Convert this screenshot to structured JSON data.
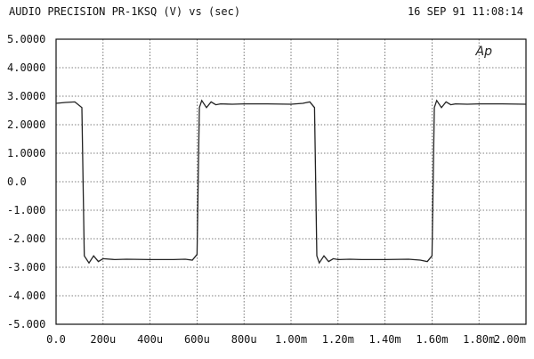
{
  "header": {
    "title": "AUDIO PRECISION PR-1KSQ  (V) vs  (sec)",
    "timestamp": "16 SEP 91 11:08:14"
  },
  "logo_text": "Ap",
  "chart_data": {
    "type": "line",
    "title": "AUDIO PRECISION PR-1KSQ  (V) vs  (sec)",
    "xlabel": "",
    "ylabel": "",
    "xlim": [
      0,
      0.002
    ],
    "ylim": [
      -5,
      5
    ],
    "grid": true,
    "x_tick_labels": [
      "0.0",
      "200u",
      "400u",
      "600u",
      "800u",
      "1.00m",
      "1.20m",
      "1.40m",
      "1.60m",
      "1.80m",
      "2.00m"
    ],
    "y_tick_labels": [
      "5.0000",
      "4.0000",
      "3.0000",
      "2.0000",
      "1.0000",
      "0.0",
      "-1.000",
      "-2.000",
      "-3.000",
      "-4.000",
      "-5.000"
    ],
    "series": [
      {
        "color": "#222222",
        "x": [
          0.0,
          4e-05,
          8e-05,
          0.00011,
          0.00012,
          0.00014,
          0.00016,
          0.00018,
          0.0002,
          0.00025,
          0.0003,
          0.0004,
          0.0005,
          0.00055,
          0.00058,
          0.0006,
          0.00061,
          0.00062,
          0.00064,
          0.00066,
          0.00068,
          0.0007,
          0.00075,
          0.0008,
          0.0009,
          0.001,
          0.00105,
          0.00108,
          0.0011,
          0.00111,
          0.00112,
          0.00114,
          0.00116,
          0.00118,
          0.0012,
          0.00125,
          0.0013,
          0.0014,
          0.0015,
          0.00155,
          0.00158,
          0.0016,
          0.00161,
          0.00162,
          0.00164,
          0.00166,
          0.00168,
          0.0017,
          0.00175,
          0.0018,
          0.0019,
          0.002
        ],
        "y": [
          2.75,
          2.78,
          2.8,
          2.6,
          -2.6,
          -2.85,
          -2.6,
          -2.8,
          -2.7,
          -2.73,
          -2.72,
          -2.73,
          -2.73,
          -2.72,
          -2.75,
          -2.55,
          2.6,
          2.85,
          2.6,
          2.8,
          2.7,
          2.73,
          2.72,
          2.73,
          2.73,
          2.72,
          2.75,
          2.8,
          2.6,
          -2.6,
          -2.85,
          -2.6,
          -2.8,
          -2.7,
          -2.73,
          -2.72,
          -2.73,
          -2.73,
          -2.72,
          -2.75,
          -2.8,
          -2.6,
          2.6,
          2.85,
          2.6,
          2.8,
          2.7,
          2.73,
          2.72,
          2.73,
          2.73,
          2.72
        ]
      }
    ]
  }
}
